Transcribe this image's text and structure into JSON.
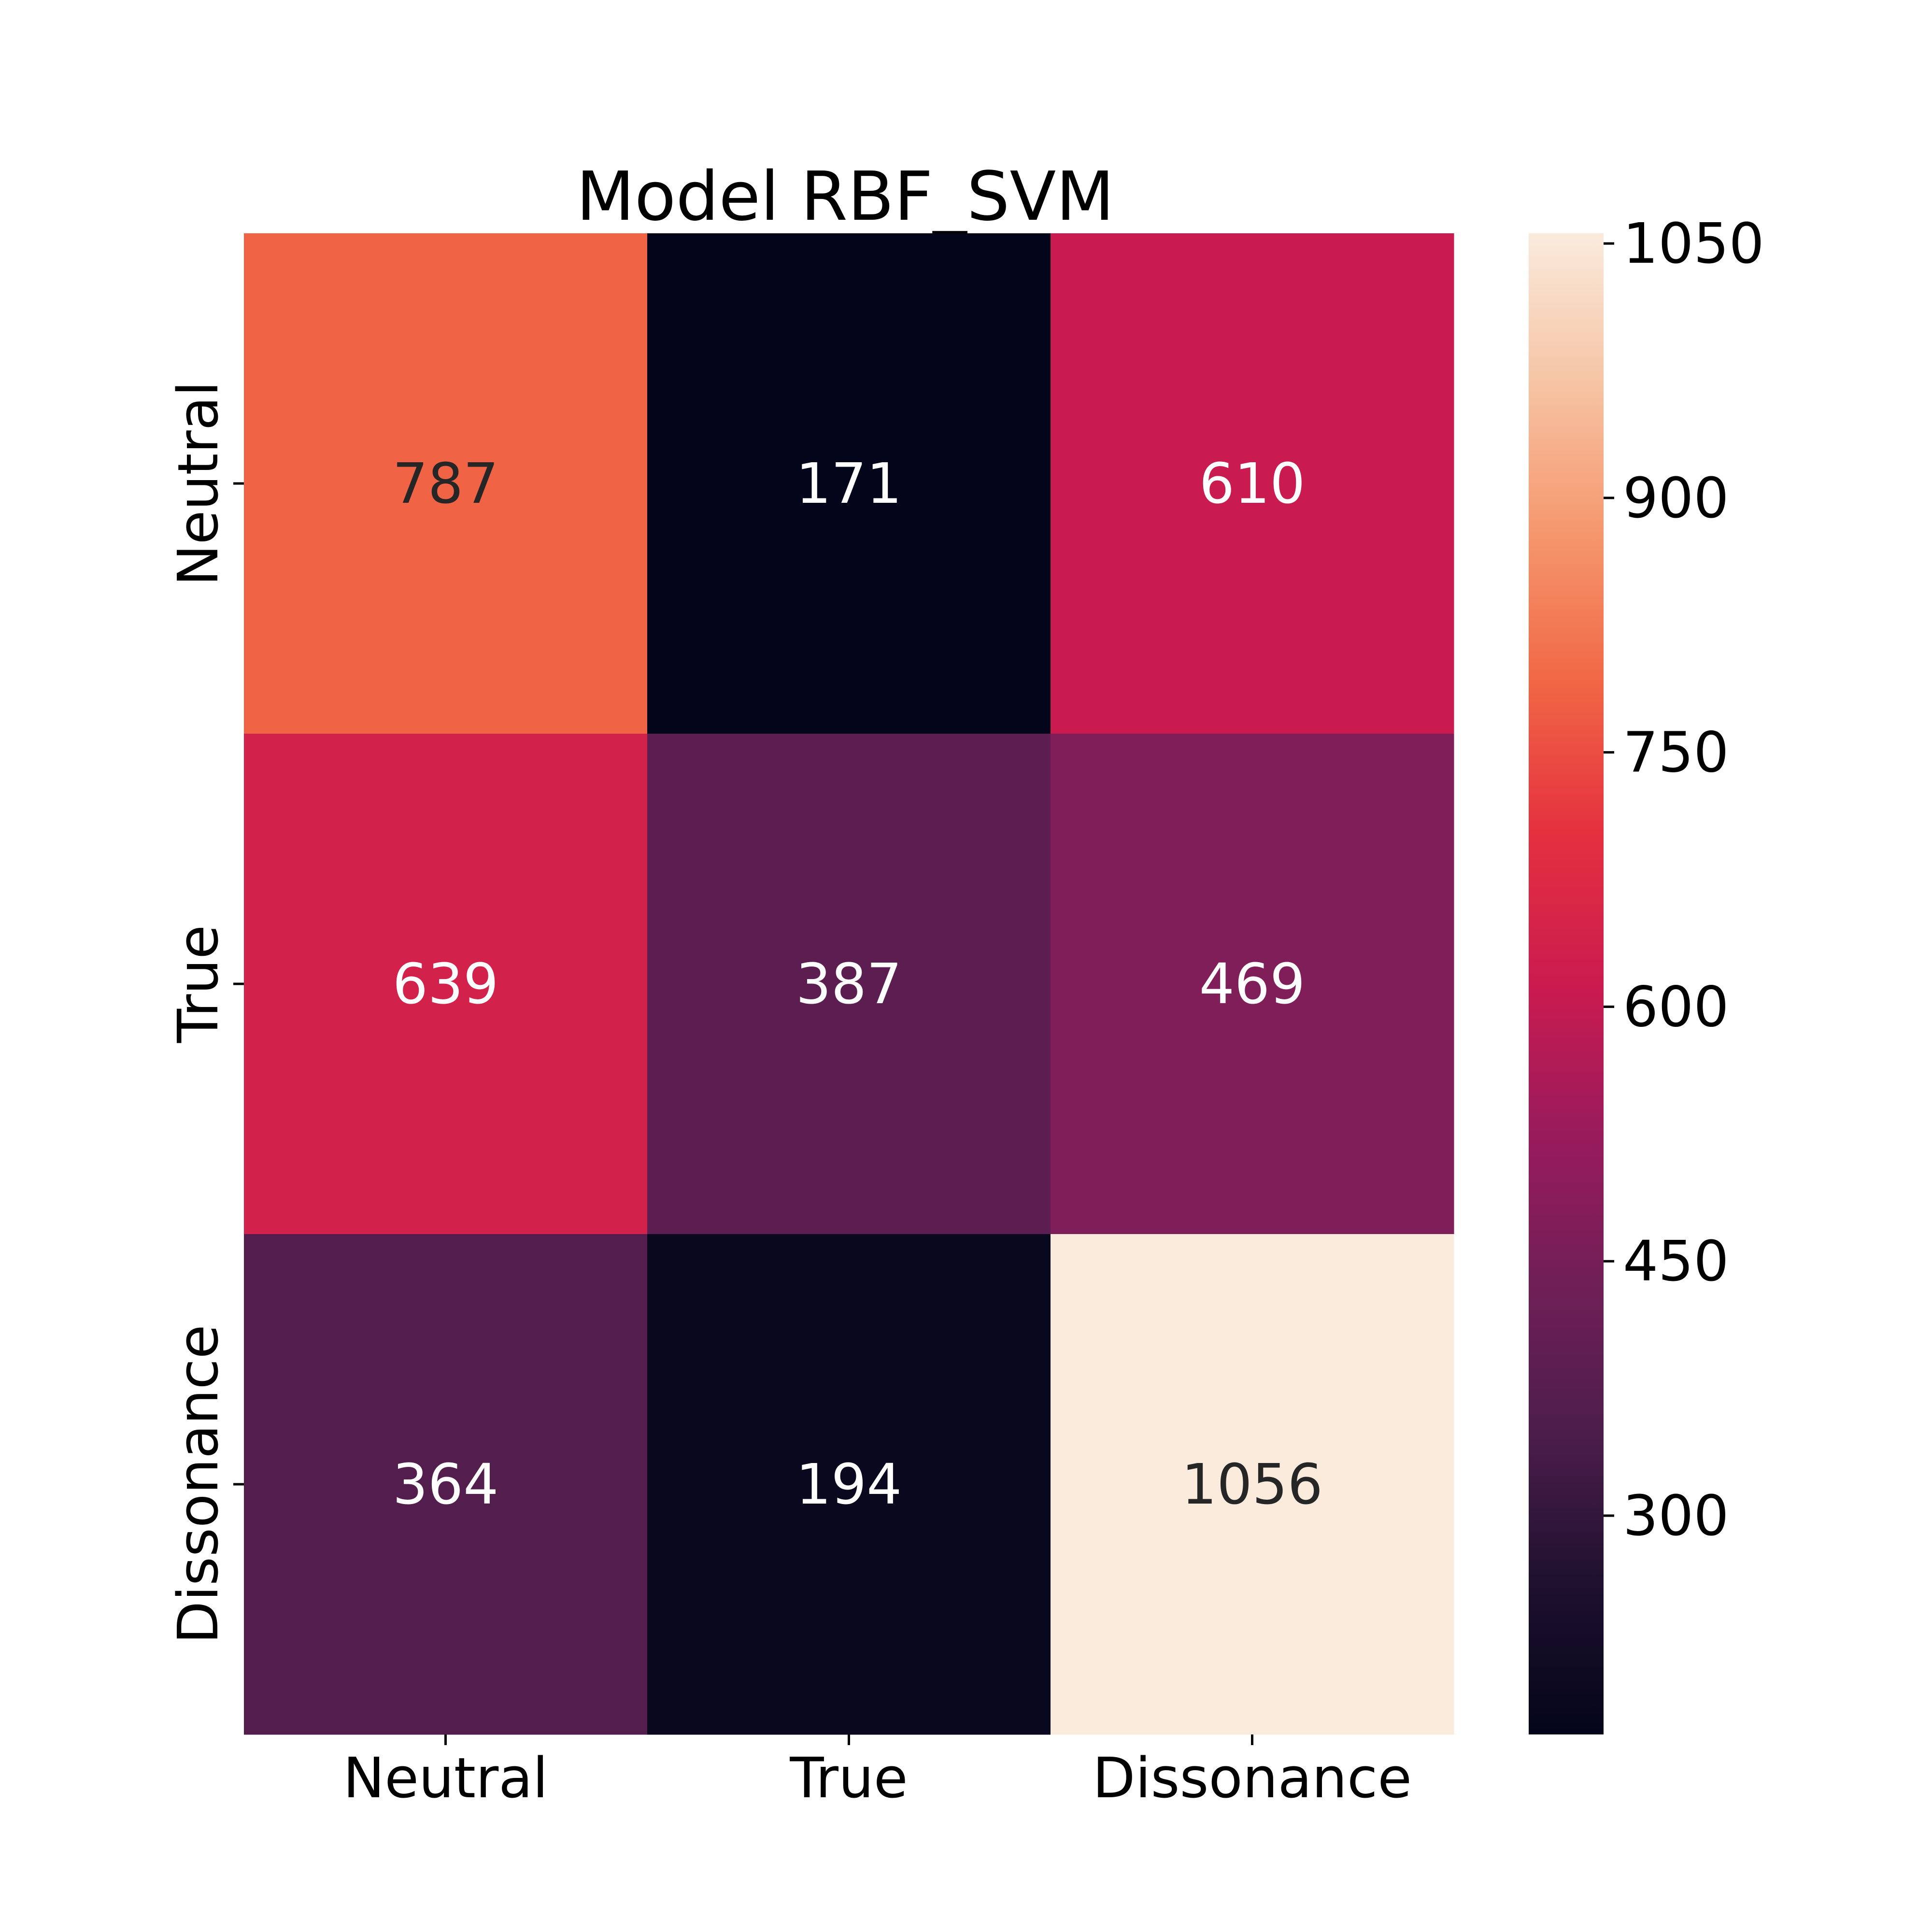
{
  "chart_data": {
    "type": "heatmap",
    "title": "Model RBF_SVM",
    "row_labels": [
      "Neutral",
      "True",
      "Dissonance"
    ],
    "col_labels": [
      "Neutral",
      "True",
      "Dissonance"
    ],
    "values": [
      [
        787,
        171,
        610
      ],
      [
        639,
        387,
        469
      ],
      [
        364,
        194,
        1056
      ]
    ],
    "colormap": "rocket",
    "color_range": [
      171,
      1056
    ],
    "colorbar_ticks": [
      300,
      450,
      600,
      750,
      900,
      1050
    ],
    "annotation_colors": {
      "light": "#ffffff",
      "dark": "#262626"
    }
  }
}
